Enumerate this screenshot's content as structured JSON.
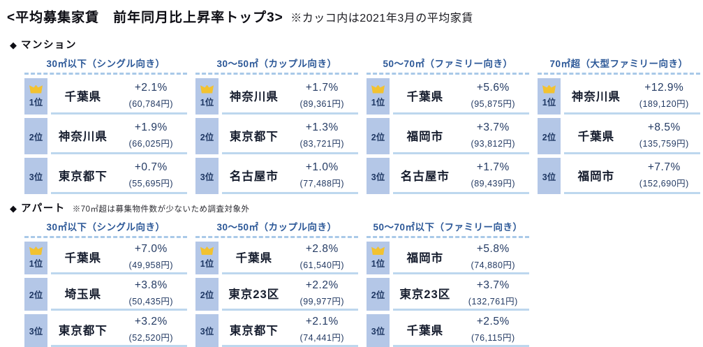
{
  "title": {
    "main": "<平均募集家賃　前年同月比上昇率トップ3>",
    "note": "※カッコ内は2021年3月の平均家賃"
  },
  "colors": {
    "rank_cell_bg": "#b4c7e7",
    "row_underline": "#bdd7ee",
    "column_header_text": "#2b5797",
    "rank_text": "#1f3864",
    "value_text": "#233a63",
    "crown_gold": "#f2c230",
    "header_dash": "#a9c9e8"
  },
  "sections": [
    {
      "id": "mansion",
      "marker": "◆",
      "label": "マンション",
      "note": "",
      "columns": [
        {
          "header": "30㎡以下（シングル向き）",
          "rows": [
            {
              "rank": "1位",
              "crown": true,
              "name": "千葉県",
              "rate": "+2.1%",
              "rent": "(60,784円)"
            },
            {
              "rank": "2位",
              "crown": false,
              "name": "神奈川県",
              "rate": "+1.9%",
              "rent": "(66,025円)"
            },
            {
              "rank": "3位",
              "crown": false,
              "name": "東京都下",
              "rate": "+0.7%",
              "rent": "(55,695円)"
            }
          ]
        },
        {
          "header": "30～50㎡（カップル向き）",
          "rows": [
            {
              "rank": "1位",
              "crown": true,
              "name": "神奈川県",
              "rate": "+1.7%",
              "rent": "(89,361円)"
            },
            {
              "rank": "2位",
              "crown": false,
              "name": "東京都下",
              "rate": "+1.3%",
              "rent": "(83,721円)"
            },
            {
              "rank": "3位",
              "crown": false,
              "name": "名古屋市",
              "rate": "+1.0%",
              "rent": "(77,488円)"
            }
          ]
        },
        {
          "header": "50～70㎡（ファミリー向き）",
          "rows": [
            {
              "rank": "1位",
              "crown": true,
              "name": "千葉県",
              "rate": "+5.6%",
              "rent": "(95,875円)"
            },
            {
              "rank": "2位",
              "crown": false,
              "name": "福岡市",
              "rate": "+3.7%",
              "rent": "(93,812円)"
            },
            {
              "rank": "3位",
              "crown": false,
              "name": "名古屋市",
              "rate": "+1.7%",
              "rent": "(89,439円)"
            }
          ]
        },
        {
          "header": "70㎡超（大型ファミリー向き）",
          "rows": [
            {
              "rank": "1位",
              "crown": true,
              "name": "神奈川県",
              "rate": "+12.9%",
              "rent": "(189,120円)"
            },
            {
              "rank": "2位",
              "crown": false,
              "name": "千葉県",
              "rate": "+8.5%",
              "rent": "(135,759円)"
            },
            {
              "rank": "3位",
              "crown": false,
              "name": "福岡市",
              "rate": "+7.7%",
              "rent": "(152,690円)"
            }
          ]
        }
      ]
    },
    {
      "id": "apartment",
      "marker": "◆",
      "label": "アパート",
      "note": "※70㎡超は募集物件数が少ないため調査対象外",
      "columns": [
        {
          "header": "30㎡以下（シングル向き）",
          "rows": [
            {
              "rank": "1位",
              "crown": true,
              "name": "千葉県",
              "rate": "+7.0%",
              "rent": "(49,958円)"
            },
            {
              "rank": "2位",
              "crown": false,
              "name": "埼玉県",
              "rate": "+3.8%",
              "rent": "(50,435円)"
            },
            {
              "rank": "3位",
              "crown": false,
              "name": "東京都下",
              "rate": "+3.2%",
              "rent": "(52,520円)"
            }
          ]
        },
        {
          "header": "30～50㎡（カップル向き）",
          "rows": [
            {
              "rank": "1位",
              "crown": true,
              "name": "千葉県",
              "rate": "+2.8%",
              "rent": "(61,540円)"
            },
            {
              "rank": "2位",
              "crown": false,
              "name": "東京23区",
              "rate": "+2.2%",
              "rent": "(99,977円)"
            },
            {
              "rank": "3位",
              "crown": false,
              "name": "東京都下",
              "rate": "+2.1%",
              "rent": "(74,441円)"
            }
          ]
        },
        {
          "header": "50～70㎡以下（ファミリー向き）",
          "rows": [
            {
              "rank": "1位",
              "crown": true,
              "name": "福岡市",
              "rate": "+5.8%",
              "rent": "(74,880円)"
            },
            {
              "rank": "2位",
              "crown": false,
              "name": "東京23区",
              "rate": "+3.7%",
              "rent": "(132,761円)"
            },
            {
              "rank": "3位",
              "crown": false,
              "name": "千葉県",
              "rate": "+2.5%",
              "rent": "(76,115円)"
            }
          ]
        }
      ]
    }
  ]
}
